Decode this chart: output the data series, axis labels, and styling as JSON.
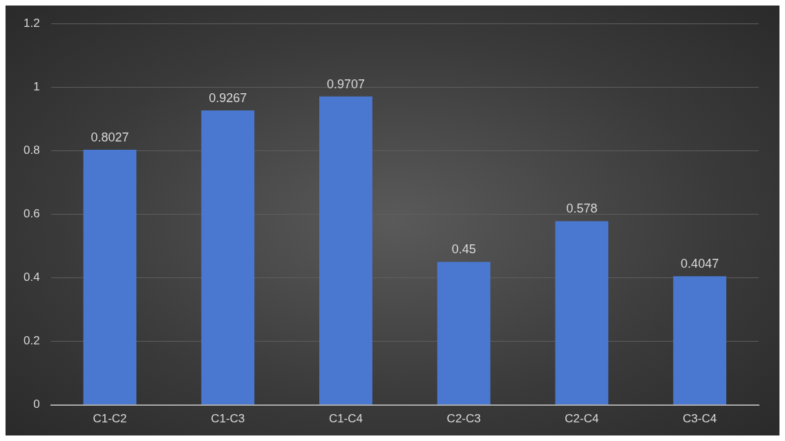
{
  "chart_data": {
    "type": "bar",
    "categories": [
      "C1-C2",
      "C1-C3",
      "C1-C4",
      "C2-C3",
      "C2-C4",
      "C3-C4"
    ],
    "values": [
      0.8027,
      0.9267,
      0.9707,
      0.45,
      0.578,
      0.4047
    ],
    "color": "#4a78d0",
    "ylim": [
      0,
      1.2
    ],
    "yticks": [
      0,
      0.2,
      0.4,
      0.6,
      0.8,
      1,
      1.2
    ],
    "grid": "y",
    "data_labels": true,
    "legend": false
  }
}
